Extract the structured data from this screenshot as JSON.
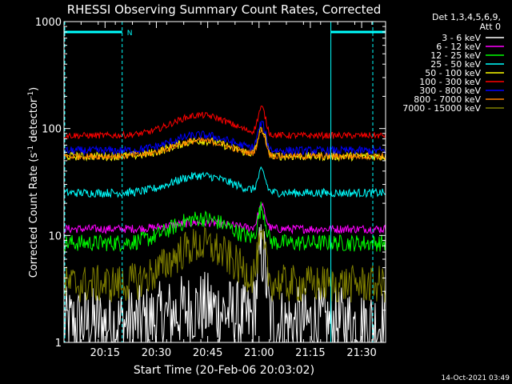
{
  "chart_data": {
    "type": "line",
    "title": "RHESSI Observing Summary Count Rates, Corrected",
    "xlabel": "Start Time (20-Feb-06 20:03:02)",
    "ylabel": "Corrected Count Rate (s⁻¹ detector⁻¹)",
    "yscale": "log",
    "ylim": [
      1,
      1000
    ],
    "xlim_minutes": [
      0,
      94
    ],
    "y_ticks": [
      {
        "value": 1,
        "label": "1"
      },
      {
        "value": 10,
        "label": "10"
      },
      {
        "value": 100,
        "label": "100"
      },
      {
        "value": 1000,
        "label": "1000"
      }
    ],
    "x_ticks": [
      {
        "value": 12,
        "label": "20:15"
      },
      {
        "value": 27,
        "label": "20:30"
      },
      {
        "value": 42,
        "label": "20:45"
      },
      {
        "value": 57,
        "label": "21:00"
      },
      {
        "value": 72,
        "label": "21:15"
      },
      {
        "value": 87,
        "label": "21:30"
      }
    ],
    "legend_header": [
      "Det 1,3,4,5,6,9,",
      "Att 0"
    ],
    "legend_position": "top-right",
    "series": [
      {
        "name": "3 - 6 keV",
        "color": "#ffffff",
        "base": 1.5,
        "hump": 1.4,
        "peak": 4.5,
        "noise": 0.35
      },
      {
        "name": "6 - 12 keV",
        "color": "#ff00ff",
        "base": 11.5,
        "hump": 1.15,
        "peak": 1.6,
        "noise": 0.04
      },
      {
        "name": "12 - 25 keV",
        "color": "#00ff00",
        "base": 8.5,
        "hump": 1.7,
        "peak": 2.0,
        "noise": 0.08
      },
      {
        "name": "25 - 50 keV",
        "color": "#00ffff",
        "base": 25,
        "hump": 1.45,
        "peak": 1.55,
        "noise": 0.04
      },
      {
        "name": "50 - 100 keV",
        "color": "#ffff00",
        "base": 55,
        "hump": 1.4,
        "peak": 1.75,
        "noise": 0.04
      },
      {
        "name": "100 - 300 keV",
        "color": "#ff0000",
        "base": 86,
        "hump": 1.55,
        "peak": 1.75,
        "noise": 0.03
      },
      {
        "name": "300 - 800 keV",
        "color": "#0000ff",
        "base": 62,
        "hump": 1.4,
        "peak": 1.75,
        "noise": 0.04
      },
      {
        "name": "800 - 7000 keV",
        "color": "#ff8000",
        "base": 55,
        "hump": 1.4,
        "peak": 1.7,
        "noise": 0.03
      },
      {
        "name": "7000 - 15000 keV",
        "color": "#808000",
        "base": 3.5,
        "hump": 2.3,
        "peak": 2.2,
        "noise": 0.18
      }
    ],
    "peak_time_minutes": 57.8,
    "hump_center_minutes": 40,
    "annotations": [
      {
        "label": "N",
        "type": "night-bar",
        "start_minutes": 0,
        "end_minutes": 17
      },
      {
        "type": "night-bar",
        "start_minutes": 78,
        "end_minutes": 94
      }
    ],
    "footer": "14-Oct-2021 03:49"
  }
}
